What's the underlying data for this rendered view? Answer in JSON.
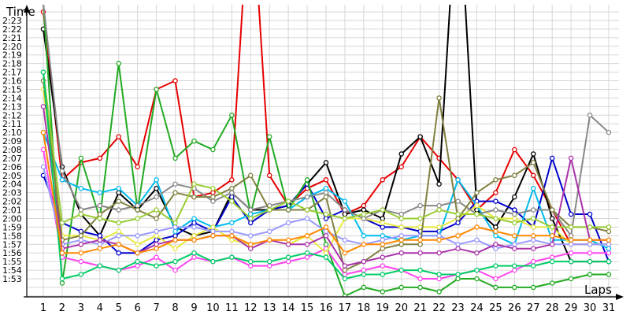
{
  "chart_data": {
    "type": "line",
    "xlabel": "Laps",
    "ylabel": "Time",
    "grid": true,
    "legend": "none",
    "x": [
      1,
      2,
      3,
      4,
      5,
      6,
      7,
      8,
      9,
      10,
      11,
      12,
      13,
      14,
      15,
      16,
      17,
      18,
      19,
      20,
      21,
      22,
      23,
      24,
      25,
      26,
      27,
      28,
      29,
      30,
      31
    ],
    "xlim": [
      1,
      31
    ],
    "ylim_seconds": [
      110,
      145
    ],
    "y_tick_labels": [
      "1:53",
      "1:54",
      "1:55",
      "1:56",
      "1:57",
      "1:58",
      "1:59",
      "2:00",
      "2:01",
      "2:02",
      "2:03",
      "2:04",
      "2:05",
      "2:06",
      "2:07",
      "2:08",
      "2:09",
      "2:10",
      "2:11",
      "2:12",
      "2:13",
      "2:14",
      "2:15",
      "2:16",
      "2:17",
      "2:18",
      "2:19",
      "2:20",
      "2:21",
      "2:22",
      "2:23"
    ],
    "x_tick_labels": [
      "1",
      "2",
      "3",
      "4",
      "5",
      "6",
      "7",
      "8",
      "9",
      "10",
      "11",
      "12",
      "13",
      "14",
      "15",
      "16",
      "17",
      "18",
      "19",
      "20",
      "21",
      "22",
      "23",
      "24",
      "25",
      "26",
      "27",
      "28",
      "29",
      "30",
      "31"
    ],
    "y_units": "lap time in seconds",
    "series": [
      {
        "color": "#e60000",
        "values": [
          144,
          124.5,
          126.5,
          127,
          129.5,
          126,
          135,
          136,
          122.5,
          123,
          124.5,
          160,
          125,
          121.5,
          123.5,
          124.5,
          120.5,
          121.5,
          124.5,
          126,
          129.5,
          127,
          124.5,
          121,
          123,
          128,
          125,
          121,
          117,
          117,
          117
        ]
      },
      {
        "color": "#000000",
        "values": [
          142,
          126,
          120.5,
          118,
          123,
          121,
          123.5,
          119,
          118,
          118.5,
          123,
          121,
          121,
          121.5,
          124,
          126.5,
          120.5,
          121,
          120,
          127.5,
          129.5,
          124,
          160,
          121,
          119,
          122.5,
          127.5,
          120,
          115,
          115,
          115
        ]
      },
      {
        "color": "#0000cc",
        "values": [
          125,
          119.5,
          118.5,
          118,
          116,
          116,
          117.5,
          118,
          119.5,
          118.5,
          122.5,
          119.5,
          121,
          121.5,
          124,
          120,
          121,
          120,
          119,
          119,
          118.5,
          118.5,
          119.5,
          122,
          122,
          121,
          119,
          127,
          120.5,
          120.5,
          115
        ]
      },
      {
        "color": "#22aa22",
        "values": [
          145,
          112.5,
          127,
          120,
          138,
          121,
          135,
          127,
          129,
          128,
          132,
          120.5,
          129.5,
          121,
          124.5,
          117,
          111,
          112,
          111.5,
          112,
          112,
          111.5,
          113,
          113,
          112,
          112,
          112,
          112.5,
          113,
          113.5,
          113.5
        ]
      },
      {
        "color": "#ff44ee",
        "values": [
          128,
          115.5,
          115,
          114.5,
          114,
          114.5,
          115.5,
          114,
          115.5,
          115,
          115.5,
          114.5,
          114.5,
          115,
          115.5,
          116.5,
          113.5,
          114,
          114.5,
          114,
          113,
          113,
          113.5,
          114,
          113,
          114,
          115,
          115.5,
          116,
          116,
          116
        ]
      },
      {
        "color": "#00bbee",
        "values": [
          130,
          124.5,
          123.5,
          123,
          123.5,
          121.5,
          124.5,
          118.5,
          120,
          119,
          119.5,
          120.5,
          121,
          121,
          122.5,
          123.5,
          122,
          118,
          118,
          117.5,
          118,
          118,
          124.5,
          121.5,
          118,
          117,
          123.5,
          117.5,
          117.5,
          117.5,
          116.5
        ]
      },
      {
        "color": "#e8e840",
        "values": [
          135,
          118,
          118,
          117.5,
          118.5,
          117,
          118,
          116.5,
          118,
          119,
          117.5,
          117,
          117.5,
          117,
          118,
          116,
          120,
          120,
          119.5,
          119,
          119,
          119,
          120,
          121.5,
          120,
          120,
          119,
          119,
          117,
          117,
          117
        ]
      },
      {
        "color": "#888888",
        "values": [
          145,
          125.5,
          121,
          121.5,
          121,
          121.5,
          122.5,
          124,
          123.5,
          122,
          123,
          121,
          121.5,
          122,
          122.5,
          123,
          121,
          120,
          121,
          120.5,
          121.5,
          121.5,
          122,
          120.5,
          121,
          120.5,
          121,
          121,
          118,
          132,
          130
        ]
      },
      {
        "color": "#9999ff",
        "values": [
          126,
          117,
          117.5,
          117,
          118,
          118,
          118.5,
          119,
          119,
          118.5,
          118.5,
          118,
          118.5,
          119.5,
          120,
          118.5,
          117.5,
          117,
          117.5,
          118,
          118,
          118,
          117,
          117.5,
          116.5,
          117,
          117.5,
          117,
          117,
          117,
          117
        ]
      },
      {
        "color": "#808040",
        "values": [
          136,
          117.5,
          118,
          120.5,
          122,
          121,
          120,
          123,
          122.5,
          122.5,
          123.5,
          125,
          121,
          121,
          121,
          122.5,
          114,
          115,
          116.5,
          117,
          117,
          134,
          120,
          123,
          124.5,
          125,
          126.5,
          121,
          119,
          119,
          118.5
        ]
      },
      {
        "color": "#99cc33",
        "values": [
          137,
          119.5,
          120.5,
          120,
          119.5,
          120,
          121,
          119.5,
          124,
          123.5,
          122,
          120,
          121,
          122,
          121,
          120.5,
          120,
          120.5,
          121,
          120,
          120,
          121,
          120.5,
          120.5,
          120,
          119.5,
          120,
          119,
          119,
          119,
          119
        ]
      },
      {
        "color": "#aa33aa",
        "values": [
          133,
          116.5,
          117,
          117.5,
          117,
          116,
          117,
          117.5,
          117.5,
          118,
          118,
          116.5,
          117.5,
          117,
          117,
          118,
          114.5,
          115,
          115.5,
          116,
          116,
          116,
          116.5,
          116,
          117,
          116.5,
          116.5,
          117,
          127,
          117.5,
          117.5
        ]
      },
      {
        "color": "#00cc66",
        "values": [
          137,
          113,
          113.5,
          114.5,
          114,
          115,
          114.5,
          115,
          116,
          115,
          115.5,
          115,
          115,
          115.5,
          116,
          115.5,
          113,
          113.5,
          113.5,
          114,
          114,
          113.5,
          113.5,
          114,
          114.5,
          114.5,
          114.5,
          115,
          115,
          115,
          115
        ]
      },
      {
        "color": "#ff8800",
        "values": [
          130,
          116,
          116,
          116.5,
          117,
          116,
          116.5,
          117.5,
          117.5,
          118,
          118,
          117,
          117.5,
          117.5,
          118,
          119,
          116,
          117,
          117,
          117.5,
          117.5,
          117.5,
          118,
          119,
          118.5,
          118,
          118,
          118,
          117.5,
          117.5,
          117.5
        ]
      }
    ]
  }
}
